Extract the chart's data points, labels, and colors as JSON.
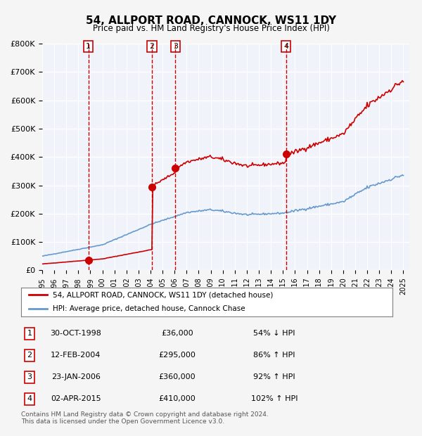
{
  "title": "54, ALLPORT ROAD, CANNOCK, WS11 1DY",
  "subtitle": "Price paid vs. HM Land Registry's House Price Index (HPI)",
  "ylim": [
    0,
    800000
  ],
  "yticks": [
    0,
    100000,
    200000,
    300000,
    400000,
    500000,
    600000,
    700000,
    800000
  ],
  "xlim_start": 1995.0,
  "xlim_end": 2025.5,
  "sale_years": [
    1998.83,
    2004.12,
    2006.07,
    2015.25
  ],
  "sale_prices": [
    36000,
    295000,
    360000,
    410000
  ],
  "sale_labels": [
    "1",
    "2",
    "3",
    "4"
  ],
  "vline_color": "#cc0000",
  "dot_color": "#cc0000",
  "hpi_color": "#6699cc",
  "price_color": "#cc0000",
  "legend_entries": [
    "54, ALLPORT ROAD, CANNOCK, WS11 1DY (detached house)",
    "HPI: Average price, detached house, Cannock Chase"
  ],
  "table_rows": [
    [
      "1",
      "30-OCT-1998",
      "£36,000",
      "54% ↓ HPI"
    ],
    [
      "2",
      "12-FEB-2004",
      "£295,000",
      "86% ↑ HPI"
    ],
    [
      "3",
      "23-JAN-2006",
      "£360,000",
      "92% ↑ HPI"
    ],
    [
      "4",
      "02-APR-2015",
      "£410,000",
      "102% ↑ HPI"
    ]
  ],
  "footnote": "Contains HM Land Registry data © Crown copyright and database right 2024.\nThis data is licensed under the Open Government Licence v3.0.",
  "bg_color": "#f0f4fa",
  "plot_bg_color": "#f0f4fa",
  "grid_color": "#ffffff"
}
